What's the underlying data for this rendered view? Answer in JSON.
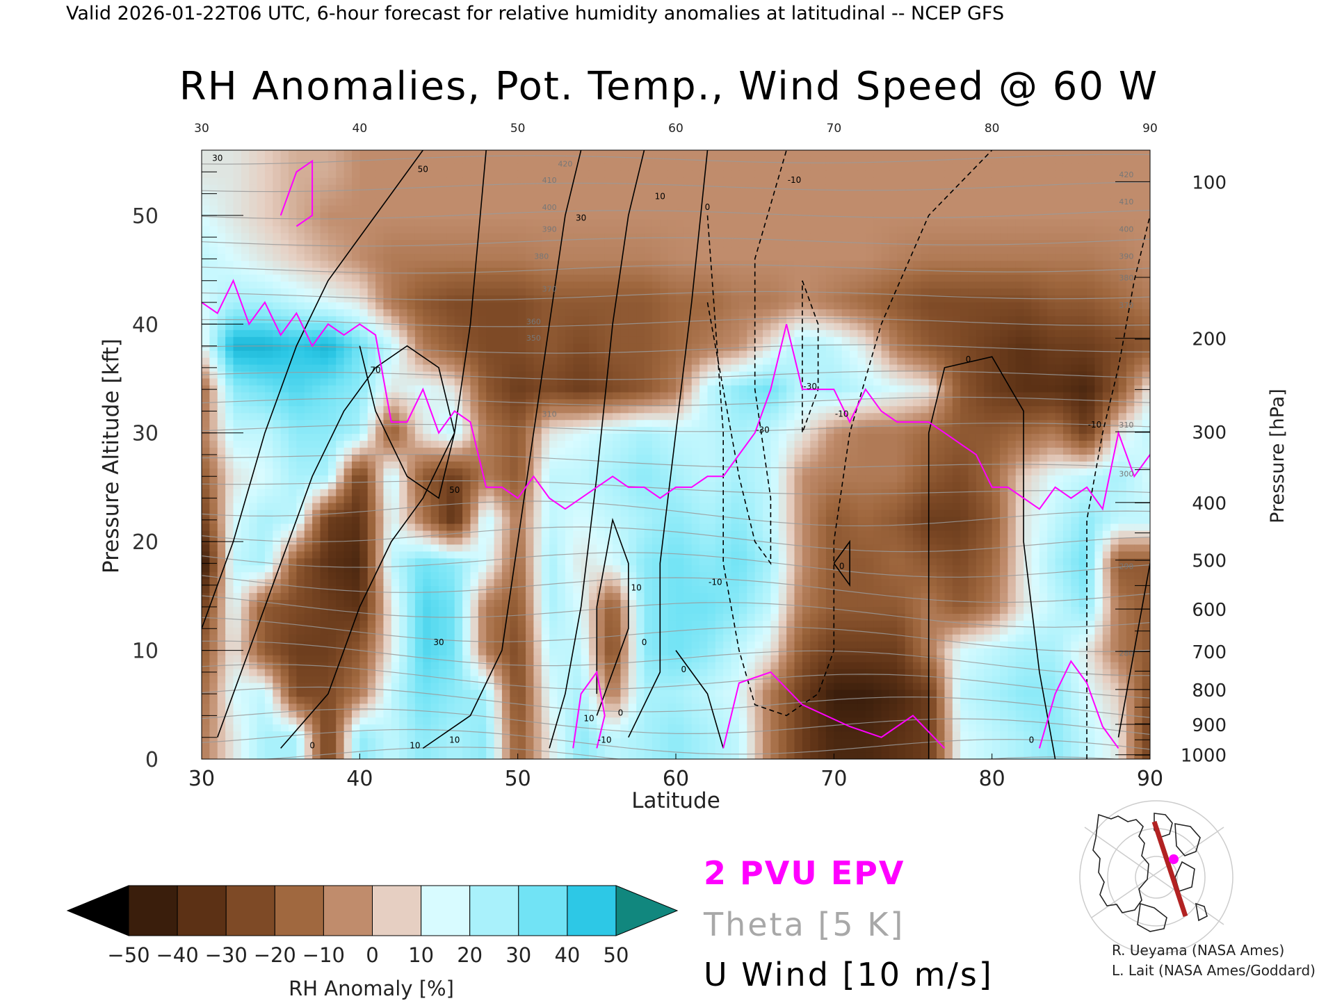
{
  "header": {
    "valid_line": "Valid 2026-01-22T06 UTC, 6-hour forecast for relative humidity anomalies at latitudinal -- NCEP GFS"
  },
  "chart_data": {
    "type": "heatmap",
    "title": "RH Anomalies, Pot. Temp., Wind Speed @ 60 W",
    "xlabel": "Latitude",
    "ylabel": "Pressure Altitude [kft]",
    "y2label": "Pressure [hPa]",
    "xlim": [
      30,
      90
    ],
    "ylim": [
      0,
      56
    ],
    "x_ticks": [
      30,
      40,
      50,
      60,
      70,
      80,
      90
    ],
    "y_ticks": [
      0,
      10,
      20,
      30,
      40,
      50
    ],
    "pressure_ticks": [
      {
        "hpa": 100,
        "kft": 53.1
      },
      {
        "hpa": 200,
        "kft": 38.7
      },
      {
        "hpa": 300,
        "kft": 30.1
      },
      {
        "hpa": 400,
        "kft": 23.6
      },
      {
        "hpa": 500,
        "kft": 18.3
      },
      {
        "hpa": 600,
        "kft": 13.8
      },
      {
        "hpa": 700,
        "kft": 9.9
      },
      {
        "hpa": 800,
        "kft": 6.4
      },
      {
        "hpa": 900,
        "kft": 3.2
      },
      {
        "hpa": 1000,
        "kft": 0.4
      }
    ],
    "colorbar": {
      "label": "RH Anomaly [%]",
      "ticks": [
        -50,
        -40,
        -30,
        -20,
        -10,
        0,
        10,
        20,
        30,
        40,
        50
      ],
      "tick_labels": [
        "−50",
        "−40",
        "−30",
        "−20",
        "−10",
        "0",
        "10",
        "20",
        "30",
        "40",
        "50"
      ],
      "colors": [
        "#3a1e0c",
        "#5c3115",
        "#7e4a26",
        "#a0683f",
        "#c08c6c",
        "#e6cfc2",
        "#d8fbff",
        "#a9f1fb",
        "#71e3f5",
        "#2dc8e6",
        "#0a9fbf"
      ],
      "low_color": "#000000",
      "high_color": "#11877e"
    },
    "rh_anomaly_grid": {
      "lat": [
        30,
        32,
        34,
        36,
        38,
        40,
        42,
        44,
        46,
        48,
        50,
        52,
        54,
        56,
        58,
        60,
        62,
        64,
        66,
        68,
        70,
        72,
        74,
        76,
        78,
        80,
        82,
        84,
        86,
        88,
        90
      ],
      "alt_kft": [
        2,
        6,
        10,
        14,
        18,
        22,
        26,
        30,
        34,
        38,
        42,
        46,
        50,
        54
      ],
      "values": [
        [
          -10,
          10,
          25,
          25,
          -30,
          30,
          20,
          30,
          25,
          30,
          -20,
          10,
          30,
          20,
          25,
          30,
          25,
          20,
          -10,
          -30,
          -40,
          -40,
          -35,
          -30,
          15,
          20,
          25,
          30,
          20,
          10,
          -30
        ],
        [
          -15,
          15,
          20,
          -25,
          -25,
          -10,
          20,
          35,
          30,
          25,
          -25,
          15,
          25,
          -10,
          25,
          25,
          20,
          15,
          -10,
          -30,
          -45,
          -45,
          -40,
          -30,
          20,
          25,
          30,
          30,
          15,
          5,
          -25
        ],
        [
          -20,
          10,
          -20,
          -30,
          -30,
          -20,
          10,
          40,
          35,
          -10,
          -25,
          20,
          20,
          -25,
          30,
          35,
          30,
          20,
          10,
          -20,
          -30,
          -30,
          -30,
          -10,
          15,
          20,
          25,
          25,
          10,
          -10,
          -20
        ],
        [
          -30,
          15,
          -20,
          -25,
          -30,
          -35,
          10,
          40,
          35,
          -10,
          -20,
          25,
          15,
          -20,
          30,
          35,
          35,
          30,
          20,
          -10,
          -20,
          -20,
          -20,
          -10,
          -20,
          -10,
          10,
          20,
          30,
          -10,
          -20
        ],
        [
          -50,
          20,
          25,
          -20,
          -35,
          -40,
          20,
          35,
          30,
          15,
          -15,
          25,
          10,
          15,
          30,
          35,
          30,
          35,
          25,
          -5,
          -20,
          -20,
          -15,
          -20,
          -25,
          -15,
          10,
          25,
          35,
          -20,
          -20
        ],
        [
          -30,
          15,
          25,
          20,
          -30,
          -35,
          15,
          -10,
          -35,
          20,
          -10,
          20,
          15,
          20,
          25,
          30,
          25,
          30,
          20,
          -5,
          -20,
          -15,
          -20,
          -30,
          -30,
          -20,
          10,
          20,
          30,
          20,
          20
        ],
        [
          -20,
          10,
          15,
          25,
          25,
          -30,
          20,
          -20,
          -30,
          -10,
          -20,
          20,
          20,
          25,
          30,
          25,
          20,
          25,
          20,
          -5,
          -10,
          -10,
          -10,
          -20,
          -25,
          -15,
          5,
          15,
          20,
          25,
          15
        ],
        [
          -10,
          20,
          20,
          30,
          30,
          25,
          -20,
          10,
          20,
          -10,
          -20,
          10,
          15,
          20,
          25,
          20,
          20,
          25,
          20,
          10,
          -5,
          -10,
          -10,
          -15,
          -20,
          -20,
          -15,
          -10,
          -30,
          10,
          20
        ],
        [
          -15,
          30,
          35,
          40,
          35,
          30,
          10,
          15,
          10,
          -20,
          -30,
          -25,
          -30,
          -25,
          -20,
          -10,
          20,
          30,
          35,
          20,
          25,
          20,
          15,
          10,
          -20,
          -30,
          -35,
          -35,
          -40,
          -20,
          10
        ],
        [
          10,
          50,
          50,
          45,
          50,
          35,
          20,
          -10,
          -20,
          -25,
          -25,
          -20,
          -25,
          -20,
          -20,
          -15,
          -10,
          -5,
          10,
          25,
          20,
          10,
          -10,
          -20,
          -25,
          -30,
          -35,
          -30,
          -30,
          -25,
          -20
        ],
        [
          15,
          25,
          25,
          20,
          15,
          10,
          -10,
          -20,
          -25,
          -25,
          -25,
          -20,
          -20,
          -20,
          -20,
          -15,
          -15,
          -10,
          -10,
          -5,
          -10,
          -15,
          -20,
          -25,
          -25,
          -25,
          -25,
          -20,
          -20,
          -15,
          -10
        ],
        [
          20,
          15,
          10,
          5,
          0,
          -5,
          -10,
          -10,
          -10,
          -10,
          -10,
          -8,
          -8,
          -8,
          -8,
          -6,
          -5,
          -5,
          -5,
          -5,
          -5,
          -5,
          -8,
          -10,
          -10,
          -10,
          -10,
          -10,
          -10,
          -8,
          -5
        ],
        [
          15,
          10,
          5,
          0,
          -5,
          -5,
          -5,
          -5,
          -5,
          -5,
          -5,
          -5,
          -5,
          -5,
          -5,
          -5,
          -5,
          -5,
          -5,
          -5,
          -5,
          -5,
          -5,
          -5,
          -5,
          -5,
          -5,
          -5,
          -5,
          -5,
          -5
        ],
        [
          10,
          10,
          5,
          0,
          0,
          -5,
          -5,
          -5,
          -5,
          -5,
          -5,
          -5,
          -5,
          -5,
          -5,
          -5,
          -5,
          -5,
          -5,
          -5,
          -5,
          -5,
          -5,
          -5,
          -5,
          -5,
          -5,
          -5,
          -5,
          -5,
          -5
        ]
      ]
    },
    "theta_labels": [
      {
        "lat": 53,
        "alt_kft": 54.5,
        "text": "420"
      },
      {
        "lat": 52,
        "alt_kft": 53.0,
        "text": "410"
      },
      {
        "lat": 52,
        "alt_kft": 50.5,
        "text": "400"
      },
      {
        "lat": 52,
        "alt_kft": 48.5,
        "text": "390"
      },
      {
        "lat": 51.5,
        "alt_kft": 46.0,
        "text": "380"
      },
      {
        "lat": 52,
        "alt_kft": 43.0,
        "text": "370"
      },
      {
        "lat": 51,
        "alt_kft": 40.0,
        "text": "360"
      },
      {
        "lat": 51,
        "alt_kft": 38.5,
        "text": "350"
      },
      {
        "lat": 52,
        "alt_kft": 31.5,
        "text": "310"
      },
      {
        "lat": 88.5,
        "alt_kft": 53.5,
        "text": "420"
      },
      {
        "lat": 88.5,
        "alt_kft": 51.0,
        "text": "410"
      },
      {
        "lat": 88.5,
        "alt_kft": 48.5,
        "text": "400"
      },
      {
        "lat": 88.5,
        "alt_kft": 46.0,
        "text": "390"
      },
      {
        "lat": 88.5,
        "alt_kft": 44.0,
        "text": "380"
      },
      {
        "lat": 88.5,
        "alt_kft": 41.5,
        "text": "370"
      },
      {
        "lat": 88.5,
        "alt_kft": 30.5,
        "text": "310"
      },
      {
        "lat": 88.5,
        "alt_kft": 26.0,
        "text": "300"
      },
      {
        "lat": 88.5,
        "alt_kft": 17.5,
        "text": "290"
      },
      {
        "lat": 88.5,
        "alt_kft": 9.5,
        "text": "280"
      }
    ],
    "u_wind_labels": [
      {
        "lat": 31,
        "alt_kft": 55.0,
        "text": "30"
      },
      {
        "lat": 44,
        "alt_kft": 54.0,
        "text": "50"
      },
      {
        "lat": 54,
        "alt_kft": 49.5,
        "text": "30"
      },
      {
        "lat": 59,
        "alt_kft": 51.5,
        "text": "10"
      },
      {
        "lat": 62,
        "alt_kft": 50.5,
        "text": "0"
      },
      {
        "lat": 41,
        "alt_kft": 35.5,
        "text": "70"
      },
      {
        "lat": 46,
        "alt_kft": 24.5,
        "text": "50"
      },
      {
        "lat": 45,
        "alt_kft": 10.5,
        "text": "30"
      },
      {
        "lat": 57.5,
        "alt_kft": 15.5,
        "text": "10"
      },
      {
        "lat": 58,
        "alt_kft": 10.5,
        "text": "0"
      },
      {
        "lat": 62.5,
        "alt_kft": 16.0,
        "text": "-10"
      },
      {
        "lat": 65.5,
        "alt_kft": 30.0,
        "text": "-30"
      },
      {
        "lat": 67.5,
        "alt_kft": 53.0,
        "text": "-10"
      },
      {
        "lat": 68.5,
        "alt_kft": 34.0,
        "text": "-30"
      },
      {
        "lat": 70.5,
        "alt_kft": 31.5,
        "text": "-10"
      },
      {
        "lat": 60.5,
        "alt_kft": 8.0,
        "text": "0"
      },
      {
        "lat": 78.5,
        "alt_kft": 36.5,
        "text": "0"
      },
      {
        "lat": 86.5,
        "alt_kft": 30.5,
        "text": "-10"
      },
      {
        "lat": 70.5,
        "alt_kft": 17.5,
        "text": "0"
      },
      {
        "lat": 54.5,
        "alt_kft": 3.5,
        "text": "10"
      },
      {
        "lat": 55.5,
        "alt_kft": 1.5,
        "text": "-10"
      },
      {
        "lat": 46,
        "alt_kft": 1.5,
        "text": "10"
      },
      {
        "lat": 37,
        "alt_kft": 1.0,
        "text": "0"
      },
      {
        "lat": 43.5,
        "alt_kft": 1.0,
        "text": "10"
      },
      {
        "lat": 56.5,
        "alt_kft": 4.0,
        "text": "0"
      },
      {
        "lat": 82.5,
        "alt_kft": 1.5,
        "text": "0"
      }
    ],
    "series": [
      {
        "name": "2 PVU EPV",
        "color": "#ff00ff",
        "x": [
          30,
          31,
          32,
          33,
          34,
          35,
          36,
          37,
          38,
          39,
          40,
          41,
          42,
          43,
          44,
          45,
          46,
          47,
          48,
          49,
          50,
          51,
          52,
          53,
          54,
          55,
          56,
          57,
          58,
          59,
          60,
          61,
          62,
          63,
          64,
          65,
          66,
          67,
          68,
          69,
          70,
          71,
          72,
          73,
          74,
          75,
          76,
          77,
          78,
          79,
          80,
          81,
          82,
          83,
          84,
          85,
          86,
          87,
          88,
          89,
          90
        ],
        "y": [
          42,
          41,
          44,
          40,
          42,
          39,
          41,
          38,
          40,
          39,
          40,
          39,
          31,
          31,
          34,
          30,
          32,
          31,
          25,
          25,
          24,
          26,
          24,
          23,
          24,
          25,
          26,
          25,
          25,
          24,
          25,
          25,
          26,
          26,
          28,
          30,
          34,
          40,
          34,
          34,
          34,
          31,
          34,
          32,
          31,
          31,
          31,
          30,
          29,
          28,
          25,
          25,
          24,
          23,
          25,
          24,
          25,
          23,
          30,
          26,
          28
        ]
      }
    ],
    "legend": [
      "2 PVU EPV",
      "Theta [5 K]",
      "U Wind [10 m/s]"
    ],
    "credits": [
      "R. Ueyama (NASA Ames)",
      "L. Lait (NASA Ames/Goddard)"
    ]
  },
  "colors": {
    "epv": "#ff00ff",
    "theta": "#9a9a9a",
    "wind": "#000000",
    "map_line": "#b22222",
    "map_point": "#ff00ff"
  }
}
